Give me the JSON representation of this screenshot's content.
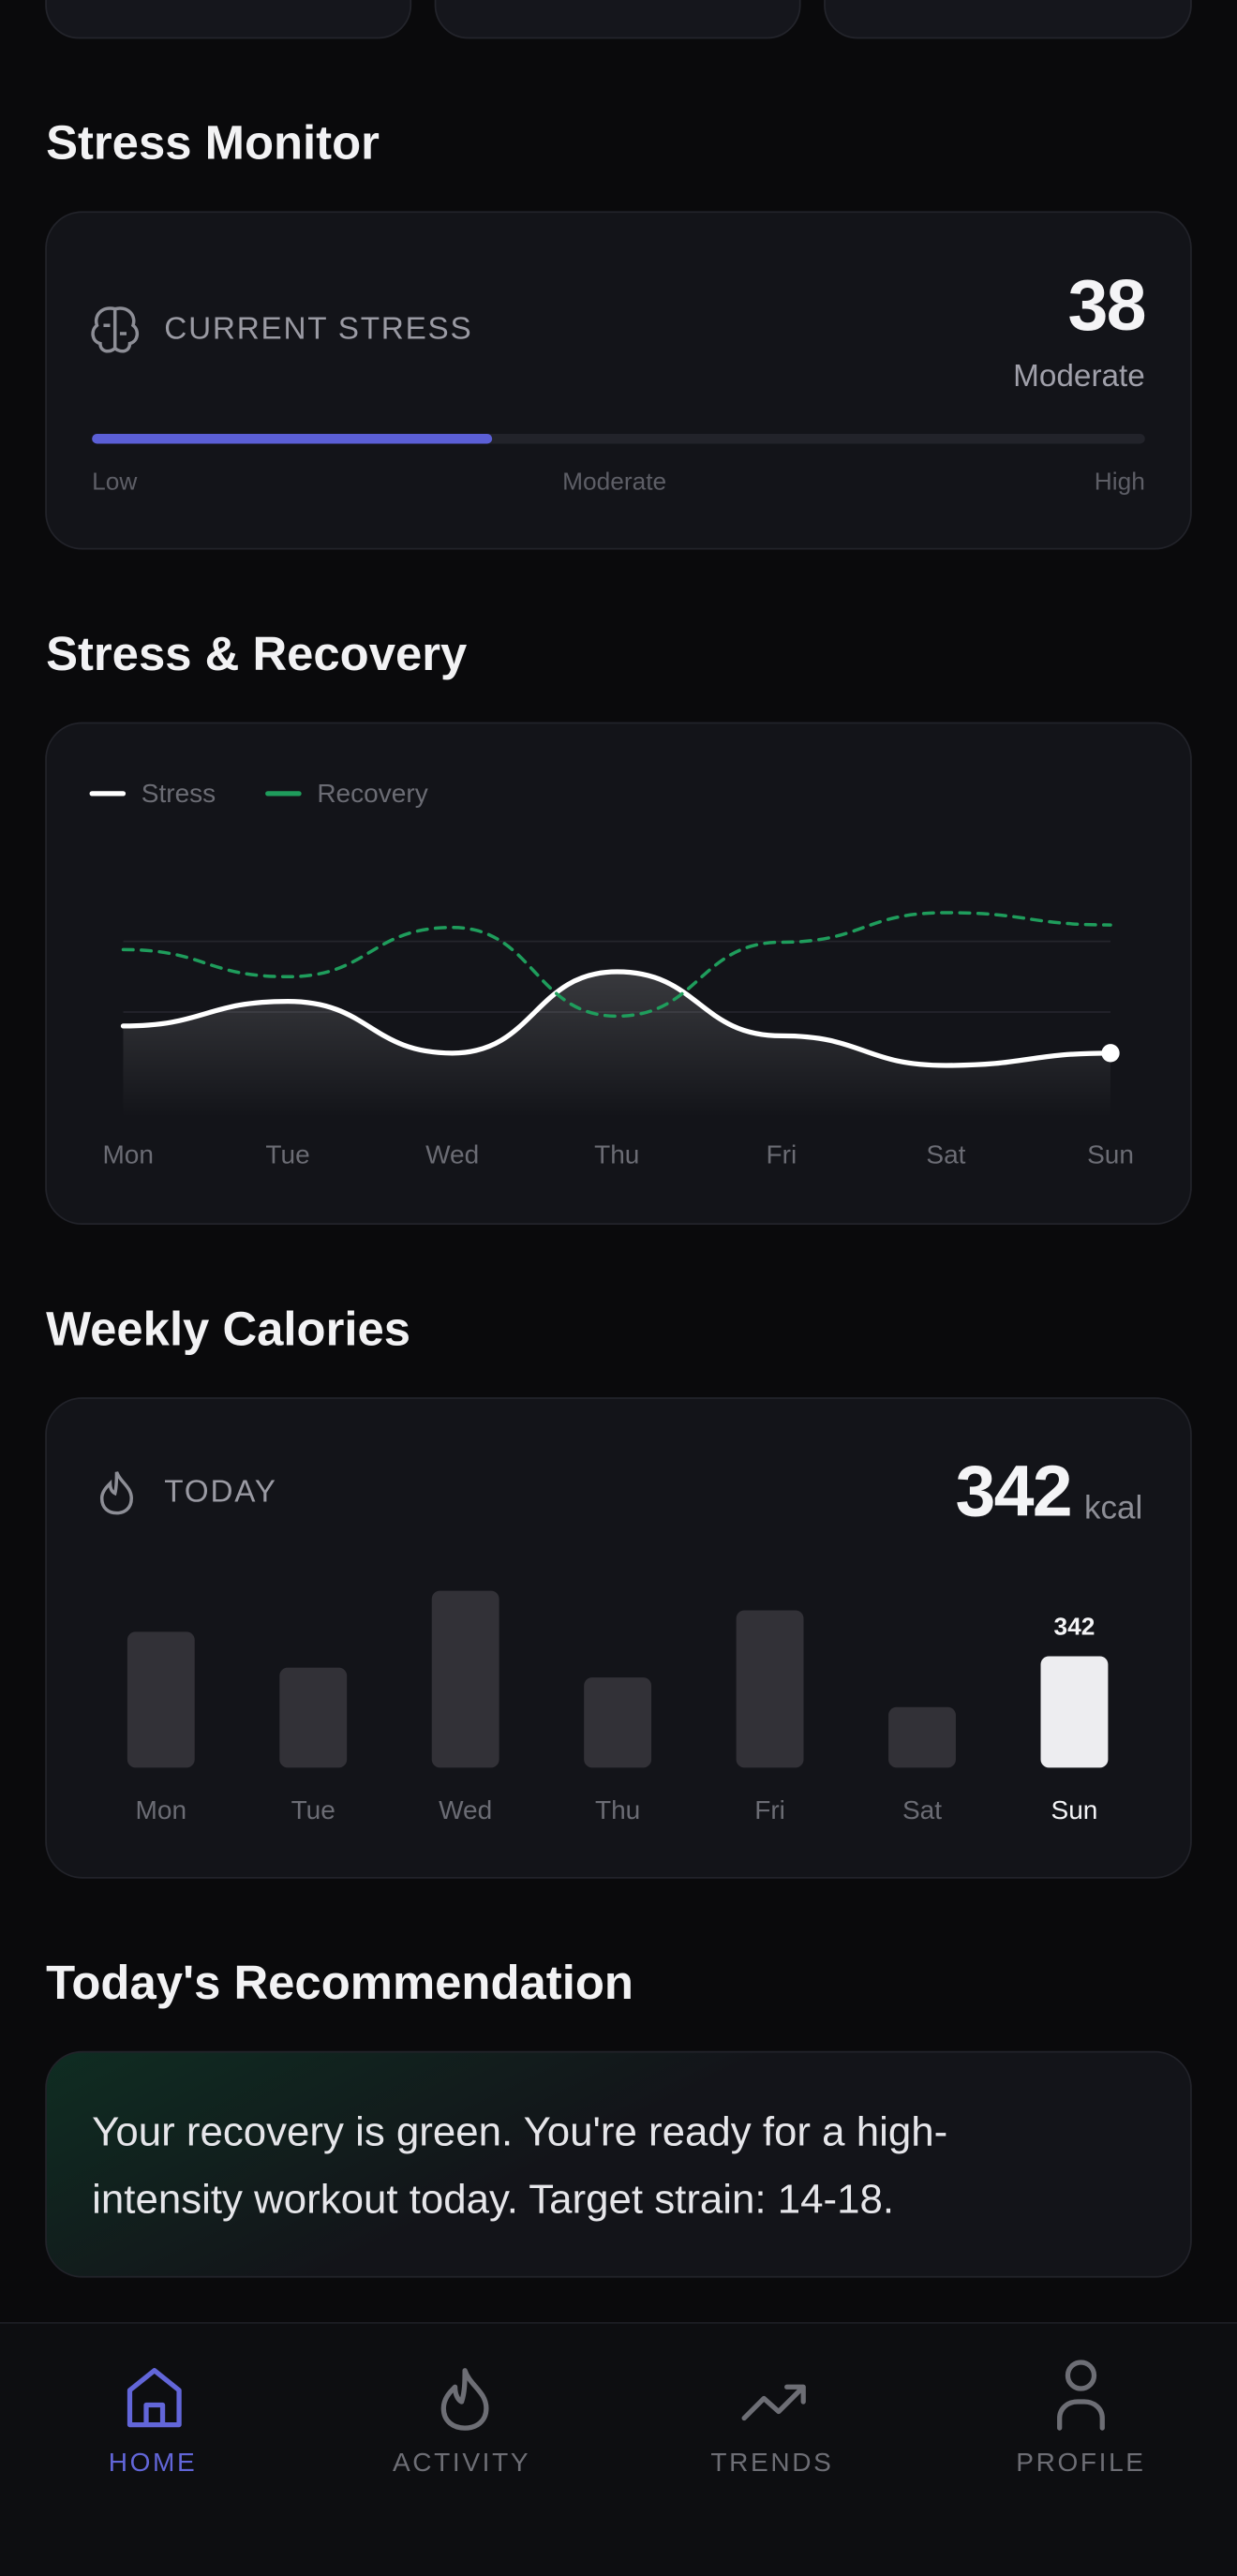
{
  "stress_monitor": {
    "title": "Stress Monitor",
    "label": "CURRENT STRESS",
    "value": 38,
    "level": "Moderate",
    "range": [
      0,
      100
    ],
    "scale_labels": [
      "Low",
      "Moderate",
      "High"
    ],
    "color": "#5b5fd6"
  },
  "stress_recovery": {
    "title": "Stress & Recovery",
    "chart_data": {
      "type": "line",
      "categories": [
        "Mon",
        "Tue",
        "Wed",
        "Thu",
        "Fri",
        "Sat",
        "Sun"
      ],
      "series": [
        {
          "name": "Stress",
          "color": "#ffffff",
          "values": [
            37,
            47,
            26,
            59,
            33,
            21,
            26
          ]
        },
        {
          "name": "Recovery",
          "color": "#1f9d5c",
          "dashed": true,
          "values": [
            68,
            57,
            77,
            41,
            71,
            83,
            78
          ]
        }
      ],
      "ylim": [
        0,
        100
      ]
    }
  },
  "weekly_calories": {
    "title": "Weekly Calories",
    "label": "TODAY",
    "today": 342,
    "unit": "kcal",
    "chart_data": {
      "type": "bar",
      "categories": [
        "Mon",
        "Tue",
        "Wed",
        "Thu",
        "Fri",
        "Sat",
        "Sun"
      ],
      "values": [
        417,
        307,
        543,
        277,
        483,
        186,
        342
      ],
      "colors": [
        "#323137",
        "#323137",
        "#323137",
        "#323137",
        "#323137",
        "#323137",
        "#ededf0"
      ],
      "show_value": [
        false,
        false,
        false,
        false,
        false,
        false,
        true
      ],
      "ylim": [
        0,
        600
      ]
    }
  },
  "recommendation": {
    "title": "Today's Recommendation",
    "text": "Your recovery is green. You're ready for a high-intensity workout today. Target strain: 14-18."
  },
  "nav": {
    "items": [
      {
        "label": "HOME",
        "active": true
      },
      {
        "label": "ACTIVITY",
        "active": false
      },
      {
        "label": "TRENDS",
        "active": false
      },
      {
        "label": "PROFILE",
        "active": false
      }
    ]
  }
}
